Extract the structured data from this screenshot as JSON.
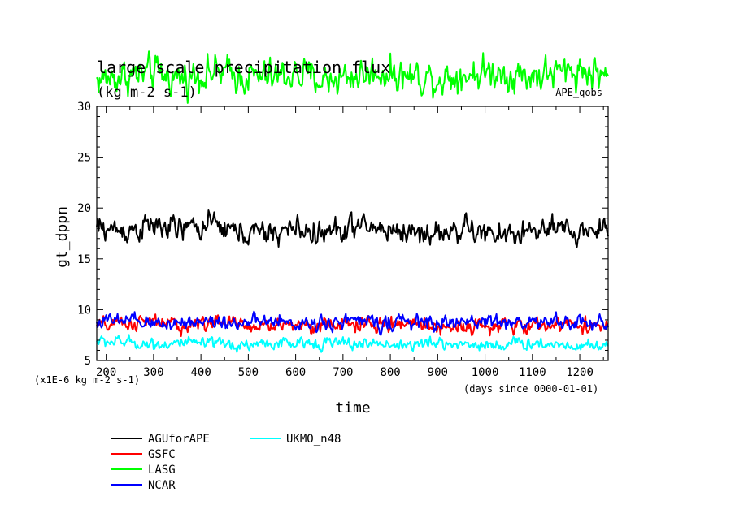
{
  "chart_data": {
    "type": "line",
    "title": "large scale precipitation flux",
    "subtitle": "(kg m-2 s-1)",
    "tag": "APE_qobs",
    "xlabel": "time",
    "x_unit": "(days since 0000-01-01)",
    "ylabel": "gt_dppn",
    "y_unit": "(x1E-6 kg m-2 s-1)",
    "xlim": [
      180,
      1260
    ],
    "ylim": [
      5,
      30
    ],
    "x_ticks": [
      200,
      300,
      400,
      500,
      600,
      700,
      800,
      900,
      1000,
      1100,
      1200
    ],
    "y_ticks": [
      5,
      10,
      15,
      20,
      25,
      30
    ],
    "grid": false,
    "legend_placement": "bottom-left",
    "series": [
      {
        "name": "AGUforAPE",
        "color": "#000000",
        "x": [
          180,
          240,
          300,
          360,
          420,
          480,
          540,
          600,
          660,
          720,
          780,
          840,
          900,
          960,
          1020,
          1080,
          1140,
          1200,
          1260
        ],
        "values": [
          18.0,
          17.8,
          18.2,
          17.9,
          18.4,
          17.6,
          17.4,
          18.0,
          17.4,
          18.2,
          18.0,
          17.6,
          17.5,
          18.0,
          17.2,
          17.6,
          17.8,
          17.6,
          18.2
        ]
      },
      {
        "name": "GSFC",
        "color": "#ff0000",
        "x": [
          180,
          240,
          300,
          360,
          420,
          480,
          540,
          600,
          660,
          720,
          780,
          840,
          900,
          960,
          1020,
          1080,
          1140,
          1200,
          1260
        ],
        "values": [
          8.4,
          8.6,
          8.8,
          8.4,
          8.8,
          8.5,
          8.4,
          8.6,
          8.4,
          8.6,
          8.4,
          8.8,
          8.3,
          8.5,
          8.3,
          8.4,
          8.5,
          8.6,
          8.3
        ]
      },
      {
        "name": "LASG",
        "color": "#00ff00",
        "x": [
          180,
          240,
          300,
          360,
          420,
          480,
          540,
          600,
          660,
          720,
          780,
          840,
          900,
          960,
          1020,
          1080,
          1140,
          1200,
          1260
        ],
        "values": [
          32.6,
          33.0,
          33.2,
          32.8,
          33.4,
          33.0,
          32.8,
          33.2,
          32.6,
          33.0,
          33.4,
          33.0,
          32.8,
          33.2,
          33.4,
          33.0,
          33.2,
          33.6,
          33.0
        ]
      },
      {
        "name": "NCAR",
        "color": "#0000ff",
        "x": [
          180,
          240,
          300,
          360,
          420,
          480,
          540,
          600,
          660,
          720,
          780,
          840,
          900,
          960,
          1020,
          1080,
          1140,
          1200,
          1260
        ],
        "values": [
          8.8,
          8.9,
          8.6,
          8.8,
          8.9,
          8.7,
          8.8,
          8.6,
          8.8,
          8.9,
          8.7,
          8.8,
          8.6,
          8.8,
          8.9,
          8.7,
          8.8,
          8.7,
          8.6
        ]
      },
      {
        "name": "UKMO_n48",
        "color": "#00ffff",
        "x": [
          180,
          240,
          300,
          360,
          420,
          480,
          540,
          600,
          660,
          720,
          780,
          840,
          900,
          960,
          1020,
          1080,
          1140,
          1200,
          1260
        ],
        "values": [
          6.9,
          6.8,
          6.6,
          6.7,
          6.6,
          6.5,
          6.7,
          6.6,
          6.8,
          6.6,
          6.7,
          6.5,
          6.7,
          6.6,
          6.5,
          6.7,
          6.6,
          6.5,
          6.6
        ]
      }
    ]
  }
}
